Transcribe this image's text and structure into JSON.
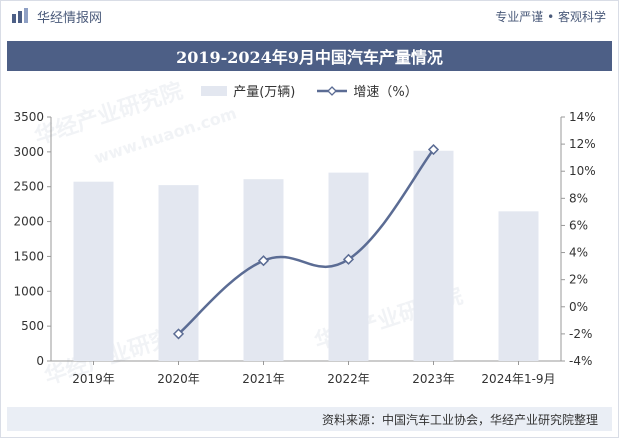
{
  "header": {
    "brand": "华经情报网",
    "tagline": "专业严谨 • 客观科学"
  },
  "colors": {
    "bar": "#e3e7f0",
    "line": "#5b6c94",
    "title_bg": "#4d5f86"
  },
  "watermark": {
    "text1": "华经产业研究院",
    "text2": "www.huaon.com"
  },
  "chart_data": {
    "type": "bar",
    "title": "2019-2024年9月中国汽车产量情况",
    "categories": [
      "2019年",
      "2020年",
      "2021年",
      "2022年",
      "2023年",
      "2024年1-9月"
    ],
    "series": [
      {
        "name": "产量(万辆)",
        "type": "bar",
        "axis": "left",
        "values": [
          2572,
          2523,
          2608,
          2702,
          3016,
          2147
        ]
      },
      {
        "name": "增速（%）",
        "type": "line",
        "axis": "right",
        "values": [
          null,
          -2.0,
          3.4,
          3.5,
          11.6,
          null
        ]
      }
    ],
    "y_left": {
      "min": 0,
      "max": 3500,
      "ticks": [
        0,
        500,
        1000,
        1500,
        2000,
        2500,
        3000,
        3500
      ]
    },
    "y_right": {
      "min": -4,
      "max": 14,
      "ticks": [
        "-4%",
        "-2%",
        "0%",
        "2%",
        "4%",
        "6%",
        "8%",
        "10%",
        "12%",
        "14%"
      ]
    },
    "legend_position": "top-center",
    "grid": false
  },
  "footer": {
    "source": "资料来源：中国汽车工业协会，华经产业研究院整理"
  }
}
